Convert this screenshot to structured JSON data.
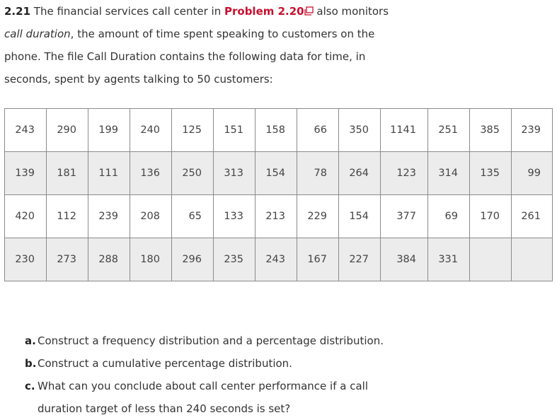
{
  "problem": {
    "number": "2.21",
    "text_1": "The financial services call center in",
    "link": "Problem 2.20",
    "text_2": "also monitors",
    "term": "call duration",
    "text_3": ", the amount of time spent speaking to customers on the phone. The file Call Duration contains the following data for time, in seconds, spent by agents talking to 50 customers:"
  },
  "table": {
    "rows": [
      [
        243,
        290,
        199,
        240,
        125,
        151,
        158,
        66,
        350,
        1141,
        251,
        385,
        239
      ],
      [
        139,
        181,
        111,
        136,
        250,
        313,
        154,
        78,
        264,
        123,
        314,
        135,
        99
      ],
      [
        420,
        112,
        239,
        208,
        65,
        133,
        213,
        229,
        154,
        377,
        69,
        170,
        261
      ],
      [
        230,
        273,
        288,
        180,
        296,
        235,
        243,
        167,
        227,
        384,
        331
      ]
    ]
  },
  "questions": [
    {
      "label": "a.",
      "text": "Construct a frequency distribution and a percentage distribution."
    },
    {
      "label": "b.",
      "text": "Construct a cumulative percentage distribution."
    },
    {
      "label": "c.",
      "text": "What can you conclude about call center performance if a call duration target of less than 240 seconds is set?"
    }
  ]
}
